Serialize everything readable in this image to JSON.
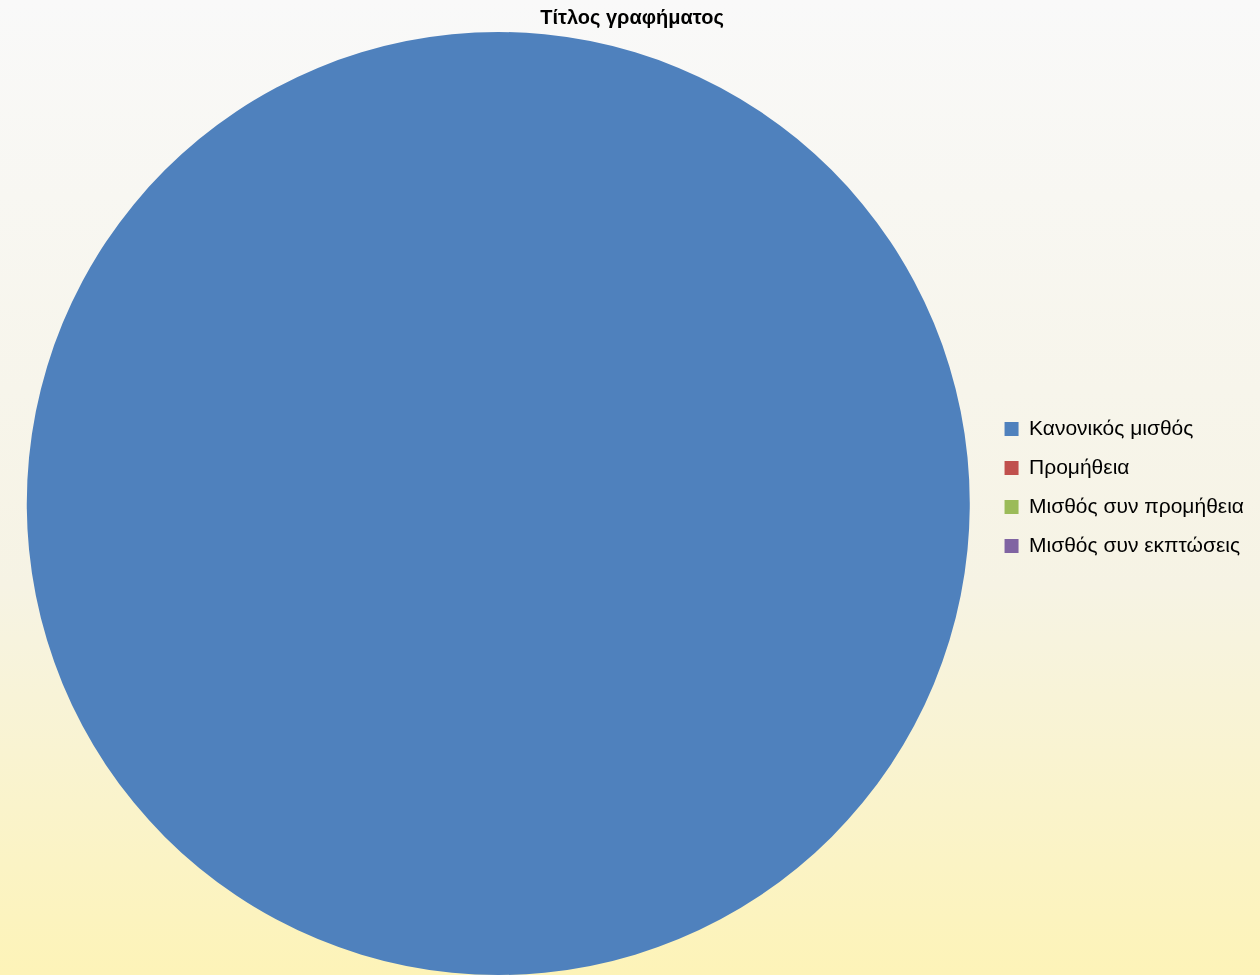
{
  "chart_data": {
    "type": "pie",
    "title": "Τίτλος γραφήματος",
    "categories": [
      "Κανονικός μισθός",
      "Προμήθεια",
      "Μισθός συν προμήθεια",
      "Μισθός συν εκπτώσεις"
    ],
    "values": [
      100,
      0,
      0,
      0
    ],
    "colors": [
      "#4f81bd",
      "#c0504d",
      "#9bbb59",
      "#8064a2"
    ],
    "legend": "right"
  }
}
